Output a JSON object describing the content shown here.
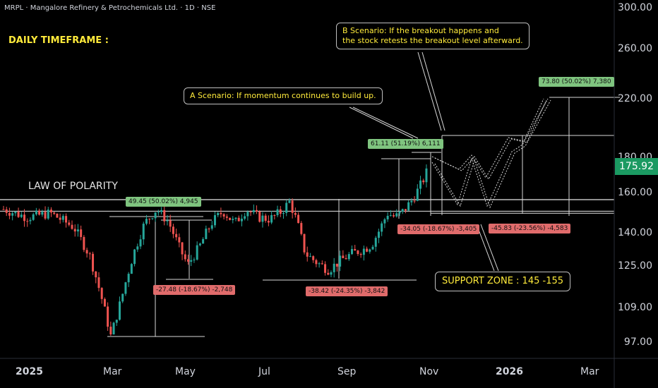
{
  "header": {
    "symbol_line": "MRPL · Mangalore Refinery & Petrochemicals Ltd. · 1D · NSE",
    "timeframe_label": "DAILY TIMEFRAME :"
  },
  "chart_data": {
    "type": "candlestick",
    "title": "MRPL · Mangalore Refinery & Petrochemicals Ltd. · 1D · NSE",
    "y_ticks": [
      "300.00",
      "260.00",
      "220.00",
      "180.00",
      "160.00",
      "140.00",
      "125.00",
      "109.00",
      "97.00"
    ],
    "x_ticks": [
      "2025",
      "Mar",
      "May",
      "Jul",
      "Sep",
      "Nov",
      "2026",
      "Mar"
    ],
    "y_scale": "log",
    "ylim": [
      88,
      305
    ],
    "last_price": "175.92",
    "series_path": [
      [
        0,
        152
      ],
      [
        3,
        148
      ],
      [
        6,
        150
      ],
      [
        9,
        143
      ],
      [
        11,
        130
      ],
      [
        12.5,
        113
      ],
      [
        13.7,
        99
      ],
      [
        15,
        112
      ],
      [
        16.5,
        130
      ],
      [
        18,
        145
      ],
      [
        19.5,
        152
      ],
      [
        21,
        146
      ],
      [
        22.5,
        133
      ],
      [
        23.5,
        126
      ],
      [
        25,
        134
      ],
      [
        26.5,
        145
      ],
      [
        28,
        151
      ],
      [
        29.5,
        145
      ],
      [
        31,
        152
      ],
      [
        32.5,
        148
      ],
      [
        34,
        147
      ],
      [
        35.5,
        151
      ],
      [
        36.5,
        156
      ],
      [
        37.5,
        145
      ],
      [
        38.5,
        131
      ],
      [
        40,
        127
      ],
      [
        41.5,
        124
      ],
      [
        43,
        128
      ],
      [
        44.5,
        131
      ],
      [
        46,
        133
      ],
      [
        47,
        135
      ],
      [
        48,
        142
      ],
      [
        49,
        150
      ],
      [
        50,
        148
      ],
      [
        51,
        151
      ],
      [
        52,
        156
      ],
      [
        53,
        163
      ],
      [
        53.8,
        170
      ],
      [
        54.3,
        175.92
      ]
    ],
    "levels": {
      "law_of_polarity": 157,
      "support_upper": 151,
      "support_lower": 150
    },
    "annotations": {
      "law_of_polarity": "LAW OF POLARITY",
      "support_zone": "SUPPORT ZONE : 145 -155",
      "scenario_a": "A Scenario: If momentum continues to build up.",
      "scenario_b_line1": "B Scenario: If the breakout happens and",
      "scenario_b_line2": "the stock retests the breakout level afterward."
    },
    "measure_labels": [
      {
        "text": "49.45 (50.02%) 4,945",
        "kind": "gain"
      },
      {
        "text": "-27.48 (-18.67%) -2,748",
        "kind": "loss"
      },
      {
        "text": "-38.42 (-24.35%) -3,842",
        "kind": "loss"
      },
      {
        "text": "61.11 (51.19%) 6,111",
        "kind": "gain"
      },
      {
        "text": "-34.05 (-18.67%) -3,405",
        "kind": "loss"
      },
      {
        "text": "-45.83 (-23.56%) -4,583",
        "kind": "loss"
      },
      {
        "text": "73.80 (50.02%) 7,380",
        "kind": "gain"
      }
    ]
  },
  "colors": {
    "background": "#000000",
    "bull": "#26a69a",
    "bear": "#ef5350",
    "annotation_text": "#ffeb3b",
    "gain_label": "#7fc47f",
    "loss_label": "#e06b6b",
    "price_tag": "#1b9a62"
  }
}
